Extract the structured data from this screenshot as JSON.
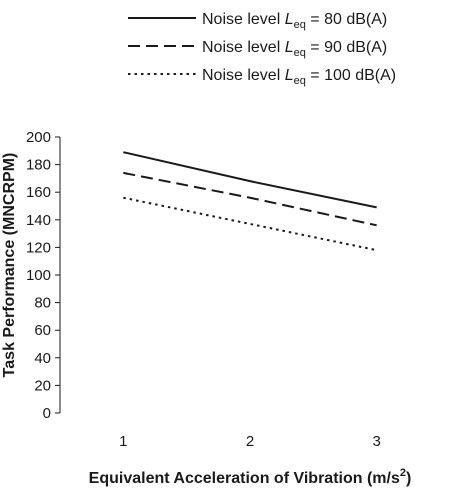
{
  "chart_data": {
    "type": "line",
    "x": [
      1,
      2,
      3
    ],
    "series": [
      {
        "name_prefix": "Noise level ",
        "name_symbol": "L",
        "name_subscript": "eq",
        "name_value": " = 80 dB(A)",
        "values": [
          189,
          168,
          149
        ],
        "color": "#1a1a1a",
        "dash": "solid"
      },
      {
        "name_prefix": "Noise level ",
        "name_symbol": "L",
        "name_subscript": "eq",
        "name_value": " = 90 dB(A)",
        "values": [
          174,
          156,
          136
        ],
        "color": "#1a1a1a",
        "dash": "dashed"
      },
      {
        "name_prefix": "Noise level ",
        "name_symbol": "L",
        "name_subscript": "eq",
        "name_value": " = 100 dB(A)",
        "values": [
          156,
          137,
          118
        ],
        "color": "#1a1a1a",
        "dash": "dotted"
      }
    ],
    "xlabel_text": "Equivalent Acceleration of Vibration (m/s",
    "xlabel_sup": "2",
    "xlabel_close": ")",
    "ylabel": "Task Performance (MNCRPM)",
    "xticks": [
      1,
      2,
      3
    ],
    "yticks": [
      0,
      20,
      40,
      60,
      80,
      100,
      120,
      140,
      160,
      180,
      200
    ],
    "xlim": [
      0.5,
      3.5
    ],
    "ylim": [
      0,
      200
    ],
    "grid": false,
    "legend_position": "top"
  }
}
